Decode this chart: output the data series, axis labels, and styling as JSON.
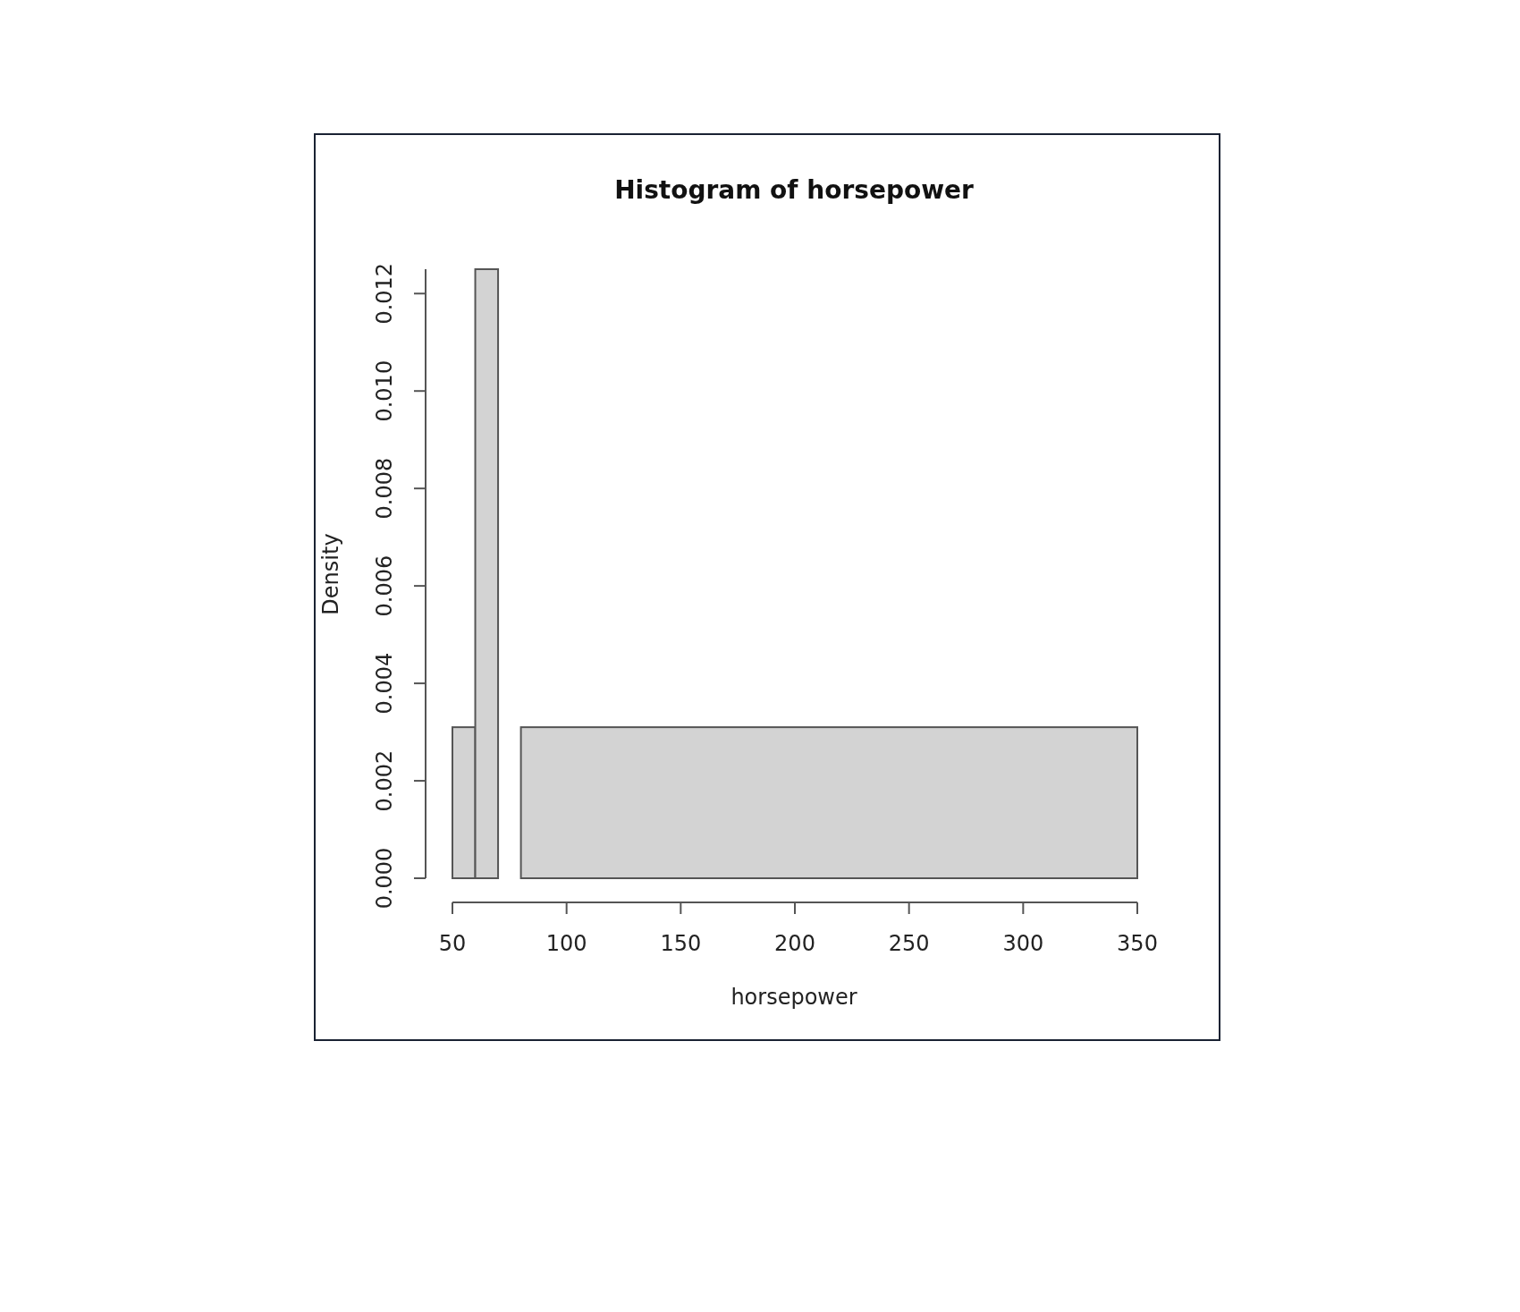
{
  "chart_data": {
    "type": "histogram",
    "title": "Histogram of horsepower",
    "xlabel": "horsepower",
    "ylabel": "Density",
    "bins": [
      50,
      60,
      70,
      80,
      350
    ],
    "values": [
      0.0031,
      0.0125,
      0,
      0.0031
    ],
    "color": "#d3d3d3",
    "xlim": [
      50,
      350
    ],
    "xticks": [
      50,
      100,
      150,
      200,
      250,
      300,
      350
    ],
    "ylim": [
      0,
      0.0125
    ],
    "yticks": [
      {
        "value": 0,
        "label": "0.000"
      },
      {
        "value": 0.002,
        "label": "0.002"
      },
      {
        "value": 0.004,
        "label": "0.004"
      },
      {
        "value": 0.006,
        "label": "0.006"
      },
      {
        "value": 0.008,
        "label": "0.008"
      },
      {
        "value": 0.01,
        "label": "0.010"
      },
      {
        "value": 0.012,
        "label": "0.012"
      }
    ],
    "grid": false
  }
}
